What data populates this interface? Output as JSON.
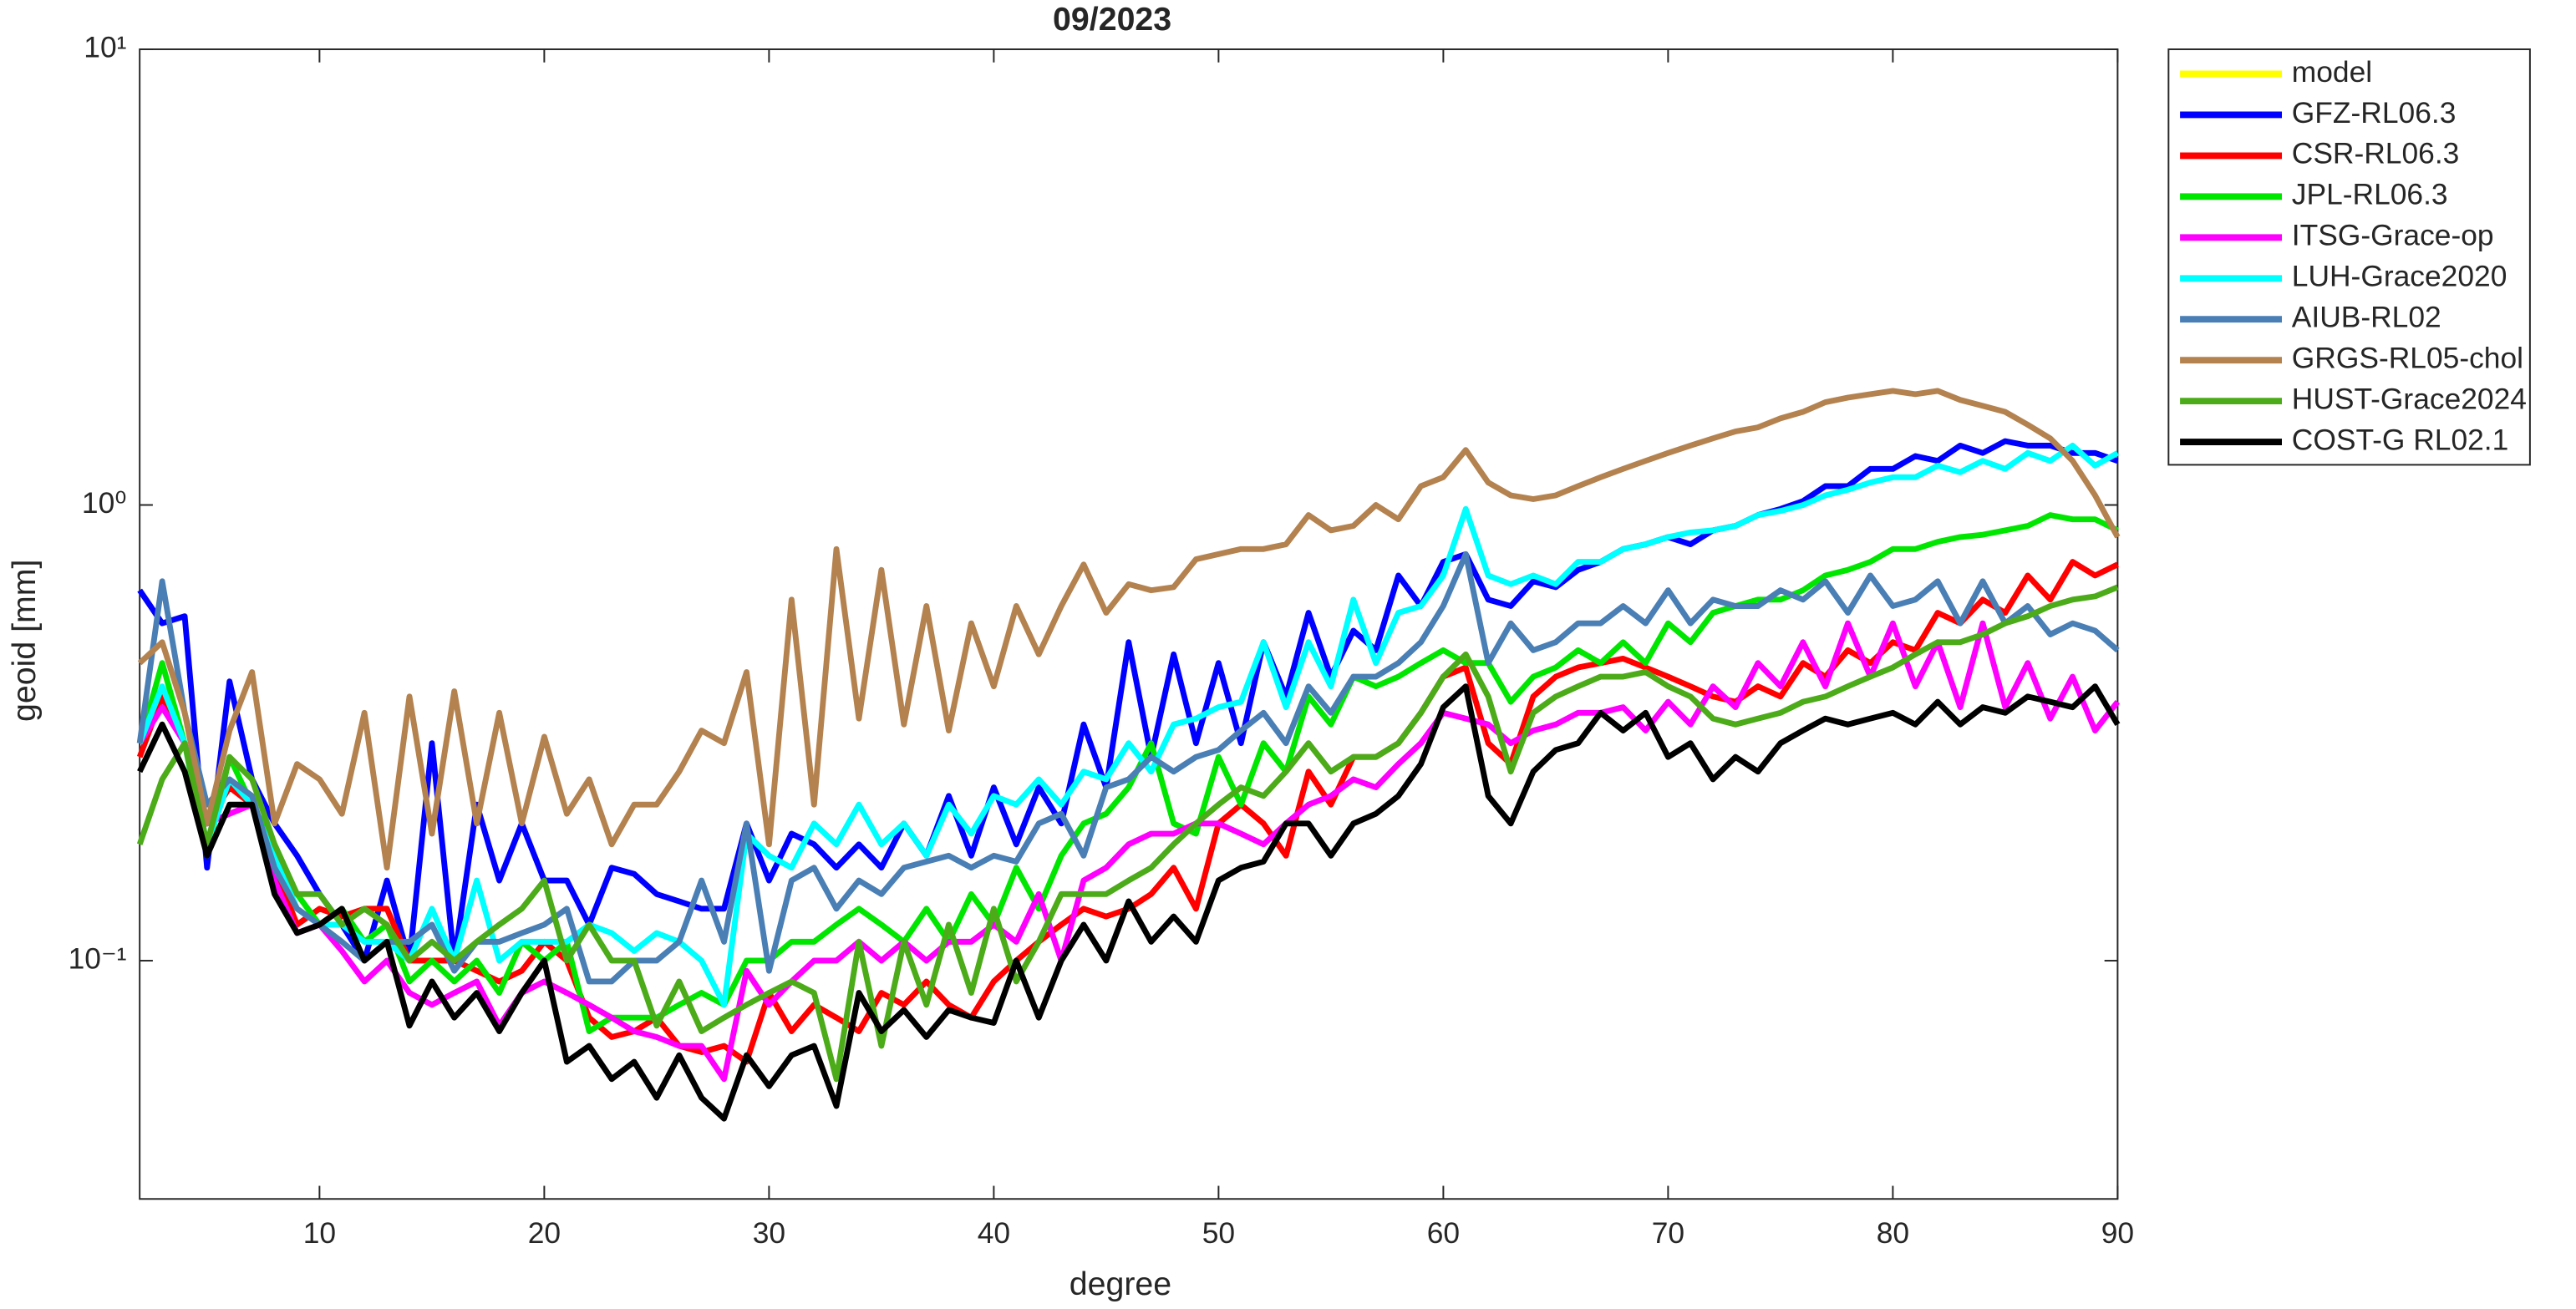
{
  "chart_data": {
    "type": "line",
    "title": "09/2023",
    "xlabel": "degree",
    "ylabel": "geoid [mm]",
    "log_y": true,
    "legend": "outside right",
    "xlim": [
      2,
      90
    ],
    "xticks": [
      10,
      20,
      30,
      40,
      50,
      60,
      70,
      80,
      90
    ],
    "ylim": [
      0.03,
      10
    ],
    "yticks": [
      {
        "value": 0.1,
        "label": "10⁻¹"
      },
      {
        "value": 1,
        "label": "10⁰"
      },
      {
        "value": 10,
        "label": "10¹"
      }
    ],
    "x": [
      2,
      3,
      4,
      5,
      6,
      7,
      8,
      9,
      10,
      11,
      12,
      13,
      14,
      15,
      16,
      17,
      18,
      19,
      20,
      21,
      22,
      23,
      24,
      25,
      26,
      27,
      28,
      29,
      30,
      31,
      32,
      33,
      34,
      35,
      36,
      37,
      38,
      39,
      40,
      41,
      42,
      43,
      44,
      45,
      46,
      47,
      48,
      49,
      50,
      51,
      52,
      53,
      54,
      55,
      56,
      57,
      58,
      59,
      60,
      61,
      62,
      63,
      64,
      65,
      66,
      67,
      68,
      69,
      70,
      71,
      72,
      73,
      74,
      75,
      76,
      77,
      78,
      79,
      80,
      81,
      82,
      83,
      84,
      85,
      86,
      87,
      88,
      89,
      90
    ],
    "series": [
      {
        "name": "model",
        "color": "#ffff00",
        "values": [
          null,
          null,
          null,
          null,
          null,
          null,
          null,
          null,
          null,
          null,
          null,
          null,
          null,
          null,
          null,
          null,
          null,
          null,
          null,
          null,
          null,
          null,
          null,
          null,
          null,
          null,
          null,
          null,
          null,
          null,
          null,
          null,
          null,
          null,
          null,
          null,
          null,
          null,
          null,
          null,
          null,
          null,
          null,
          null,
          null,
          null,
          null,
          null,
          null,
          null,
          null,
          null,
          null,
          null,
          null,
          null,
          null,
          null,
          null,
          null,
          null,
          null,
          null,
          null,
          null,
          null,
          null,
          null,
          null,
          null,
          null,
          null,
          null,
          null,
          null,
          null,
          null,
          null,
          null,
          null,
          null,
          null,
          null,
          null,
          null,
          null,
          null,
          null,
          null
        ]
      },
      {
        "name": "GFZ-RL06.3",
        "color": "#0000ff",
        "values": [
          0.65,
          0.55,
          0.57,
          0.16,
          0.41,
          0.25,
          0.2,
          0.17,
          0.14,
          0.12,
          0.1,
          0.15,
          0.1,
          0.3,
          0.1,
          0.22,
          0.15,
          0.2,
          0.15,
          0.15,
          0.12,
          0.16,
          0.155,
          0.14,
          0.135,
          0.13,
          0.13,
          0.2,
          0.15,
          0.19,
          0.18,
          0.16,
          0.18,
          0.16,
          0.2,
          0.17,
          0.23,
          0.17,
          0.24,
          0.18,
          0.24,
          0.2,
          0.33,
          0.24,
          0.5,
          0.28,
          0.47,
          0.3,
          0.45,
          0.3,
          0.5,
          0.38,
          0.58,
          0.42,
          0.53,
          0.48,
          0.7,
          0.6,
          0.75,
          0.78,
          0.62,
          0.6,
          0.68,
          0.66,
          0.72,
          0.75,
          0.8,
          0.82,
          0.85,
          0.82,
          0.88,
          0.9,
          0.95,
          0.98,
          1.02,
          1.1,
          1.1,
          1.2,
          1.2,
          1.28,
          1.25,
          1.35,
          1.3,
          1.38,
          1.35,
          1.35,
          1.3,
          1.3,
          1.25
        ]
      },
      {
        "name": "CSR-RL06.3",
        "color": "#ff0000",
        "values": [
          0.28,
          0.38,
          0.3,
          0.2,
          0.24,
          0.22,
          0.16,
          0.12,
          0.13,
          0.125,
          0.13,
          0.13,
          0.1,
          0.1,
          0.1,
          0.095,
          0.09,
          0.095,
          0.11,
          0.1,
          0.075,
          0.068,
          0.07,
          0.075,
          0.065,
          0.063,
          0.065,
          0.06,
          0.085,
          0.07,
          0.08,
          0.075,
          0.07,
          0.085,
          0.08,
          0.09,
          0.08,
          0.075,
          0.09,
          0.1,
          0.11,
          0.12,
          0.13,
          0.125,
          0.13,
          0.14,
          0.16,
          0.13,
          0.2,
          0.22,
          0.2,
          0.17,
          0.26,
          0.22,
          0.28,
          0.28,
          0.3,
          0.35,
          0.42,
          0.44,
          0.3,
          0.27,
          0.38,
          0.42,
          0.44,
          0.45,
          0.46,
          0.44,
          0.42,
          0.4,
          0.38,
          0.37,
          0.4,
          0.38,
          0.45,
          0.42,
          0.48,
          0.45,
          0.5,
          0.48,
          0.58,
          0.55,
          0.62,
          0.58,
          0.7,
          0.62,
          0.75,
          0.7,
          0.74
        ]
      },
      {
        "name": "JPL-RL06.3",
        "color": "#00e600",
        "values": [
          0.3,
          0.45,
          0.3,
          0.17,
          0.28,
          0.22,
          0.18,
          0.14,
          0.12,
          0.13,
          0.11,
          0.12,
          0.09,
          0.1,
          0.09,
          0.1,
          0.085,
          0.11,
          0.1,
          0.11,
          0.07,
          0.075,
          0.075,
          0.075,
          0.08,
          0.085,
          0.08,
          0.1,
          0.1,
          0.11,
          0.11,
          0.12,
          0.13,
          0.12,
          0.11,
          0.13,
          0.11,
          0.14,
          0.12,
          0.16,
          0.13,
          0.17,
          0.2,
          0.21,
          0.24,
          0.3,
          0.2,
          0.19,
          0.28,
          0.22,
          0.3,
          0.26,
          0.38,
          0.33,
          0.42,
          0.4,
          0.42,
          0.45,
          0.48,
          0.45,
          0.45,
          0.37,
          0.42,
          0.44,
          0.48,
          0.45,
          0.5,
          0.45,
          0.55,
          0.5,
          0.58,
          0.6,
          0.62,
          0.62,
          0.65,
          0.7,
          0.72,
          0.75,
          0.8,
          0.8,
          0.83,
          0.85,
          0.86,
          0.88,
          0.9,
          0.95,
          0.93,
          0.93,
          0.88
        ]
      },
      {
        "name": "ITSG-Grace-op",
        "color": "#ff00ff",
        "values": [
          0.3,
          0.36,
          0.3,
          0.2,
          0.21,
          0.22,
          0.15,
          0.115,
          0.12,
          0.105,
          0.09,
          0.1,
          0.085,
          0.08,
          0.085,
          0.09,
          0.072,
          0.085,
          0.09,
          0.085,
          0.08,
          0.075,
          0.07,
          0.068,
          0.065,
          0.065,
          0.055,
          0.095,
          0.08,
          0.09,
          0.1,
          0.1,
          0.11,
          0.1,
          0.11,
          0.1,
          0.11,
          0.11,
          0.12,
          0.11,
          0.14,
          0.1,
          0.15,
          0.16,
          0.18,
          0.19,
          0.19,
          0.2,
          0.2,
          0.19,
          0.18,
          0.2,
          0.22,
          0.23,
          0.25,
          0.24,
          0.27,
          0.3,
          0.35,
          0.34,
          0.33,
          0.3,
          0.32,
          0.33,
          0.35,
          0.35,
          0.36,
          0.32,
          0.37,
          0.33,
          0.4,
          0.36,
          0.45,
          0.4,
          0.5,
          0.4,
          0.55,
          0.42,
          0.55,
          0.4,
          0.5,
          0.36,
          0.55,
          0.36,
          0.45,
          0.34,
          0.42,
          0.32,
          0.37
        ]
      },
      {
        "name": "LUH-Grace2020",
        "color": "#00ffff",
        "values": [
          0.3,
          0.4,
          0.3,
          0.18,
          0.25,
          0.22,
          0.17,
          0.13,
          0.12,
          0.12,
          0.11,
          0.11,
          0.1,
          0.13,
          0.1,
          0.15,
          0.1,
          0.11,
          0.11,
          0.11,
          0.12,
          0.115,
          0.105,
          0.115,
          0.11,
          0.1,
          0.08,
          0.19,
          0.17,
          0.16,
          0.2,
          0.18,
          0.22,
          0.18,
          0.2,
          0.17,
          0.22,
          0.19,
          0.23,
          0.22,
          0.25,
          0.22,
          0.26,
          0.25,
          0.3,
          0.26,
          0.33,
          0.34,
          0.36,
          0.37,
          0.5,
          0.36,
          0.5,
          0.4,
          0.62,
          0.45,
          0.58,
          0.6,
          0.7,
          0.98,
          0.7,
          0.67,
          0.7,
          0.67,
          0.75,
          0.75,
          0.8,
          0.82,
          0.85,
          0.87,
          0.88,
          0.9,
          0.95,
          0.97,
          1.0,
          1.05,
          1.08,
          1.12,
          1.15,
          1.15,
          1.22,
          1.18,
          1.25,
          1.2,
          1.3,
          1.25,
          1.35,
          1.22,
          1.3
        ]
      },
      {
        "name": "AIUB-RL02",
        "color": "#4a7fb5",
        "values": [
          0.3,
          0.68,
          0.35,
          0.22,
          0.25,
          0.23,
          0.16,
          0.13,
          0.12,
          0.11,
          0.1,
          0.11,
          0.11,
          0.12,
          0.095,
          0.11,
          0.11,
          0.115,
          0.12,
          0.13,
          0.09,
          0.09,
          0.1,
          0.1,
          0.11,
          0.15,
          0.11,
          0.2,
          0.095,
          0.15,
          0.16,
          0.13,
          0.15,
          0.14,
          0.16,
          0.165,
          0.17,
          0.16,
          0.17,
          0.165,
          0.2,
          0.21,
          0.17,
          0.24,
          0.25,
          0.28,
          0.26,
          0.28,
          0.29,
          0.32,
          0.35,
          0.3,
          0.4,
          0.35,
          0.42,
          0.42,
          0.45,
          0.5,
          0.6,
          0.78,
          0.45,
          0.55,
          0.48,
          0.5,
          0.55,
          0.55,
          0.6,
          0.55,
          0.65,
          0.55,
          0.62,
          0.6,
          0.6,
          0.65,
          0.62,
          0.68,
          0.58,
          0.7,
          0.6,
          0.62,
          0.68,
          0.55,
          0.68,
          0.55,
          0.6,
          0.52,
          0.55,
          0.53,
          0.48
        ]
      },
      {
        "name": "GRGS-RL05-chol",
        "color": "#b4824f",
        "values": [
          0.45,
          0.5,
          0.35,
          0.2,
          0.32,
          0.43,
          0.2,
          0.27,
          0.25,
          0.21,
          0.35,
          0.16,
          0.38,
          0.19,
          0.39,
          0.2,
          0.35,
          0.2,
          0.31,
          0.21,
          0.25,
          0.18,
          0.22,
          0.22,
          0.26,
          0.32,
          0.3,
          0.43,
          0.18,
          0.62,
          0.22,
          0.8,
          0.34,
          0.72,
          0.33,
          0.6,
          0.32,
          0.55,
          0.4,
          0.6,
          0.47,
          0.6,
          0.74,
          0.58,
          0.67,
          0.65,
          0.66,
          0.76,
          0.78,
          0.8,
          0.8,
          0.82,
          0.95,
          0.88,
          0.9,
          1.0,
          0.93,
          1.1,
          1.15,
          1.32,
          1.12,
          1.05,
          1.03,
          1.05,
          1.1,
          1.15,
          1.2,
          1.25,
          1.3,
          1.35,
          1.4,
          1.45,
          1.48,
          1.55,
          1.6,
          1.68,
          1.72,
          1.75,
          1.78,
          1.75,
          1.78,
          1.7,
          1.65,
          1.6,
          1.5,
          1.4,
          1.25,
          1.05,
          0.85
        ]
      },
      {
        "name": "HUST-Grace2024",
        "color": "#4cab19",
        "values": [
          0.18,
          0.25,
          0.3,
          0.18,
          0.28,
          0.25,
          0.18,
          0.14,
          0.14,
          0.12,
          0.13,
          0.12,
          0.1,
          0.11,
          0.1,
          0.11,
          0.12,
          0.13,
          0.15,
          0.1,
          0.12,
          0.1,
          0.1,
          0.072,
          0.09,
          0.07,
          0.075,
          0.08,
          0.085,
          0.09,
          0.085,
          0.055,
          0.11,
          0.065,
          0.11,
          0.08,
          0.12,
          0.085,
          0.13,
          0.09,
          0.11,
          0.14,
          0.14,
          0.14,
          0.15,
          0.16,
          0.18,
          0.2,
          0.22,
          0.24,
          0.23,
          0.26,
          0.3,
          0.26,
          0.28,
          0.28,
          0.3,
          0.35,
          0.42,
          0.47,
          0.38,
          0.26,
          0.35,
          0.38,
          0.4,
          0.42,
          0.42,
          0.43,
          0.4,
          0.38,
          0.34,
          0.33,
          0.34,
          0.35,
          0.37,
          0.38,
          0.4,
          0.42,
          0.44,
          0.47,
          0.5,
          0.5,
          0.52,
          0.55,
          0.57,
          0.6,
          0.62,
          0.63,
          0.66
        ]
      },
      {
        "name": "COST-G RL02.1",
        "color": "#000000",
        "values": [
          0.26,
          0.33,
          0.26,
          0.17,
          0.22,
          0.22,
          0.14,
          0.115,
          0.12,
          0.13,
          0.1,
          0.11,
          0.072,
          0.09,
          0.075,
          0.085,
          0.07,
          0.085,
          0.1,
          0.06,
          0.065,
          0.055,
          0.06,
          0.05,
          0.062,
          0.05,
          0.045,
          0.062,
          0.053,
          0.062,
          0.065,
          0.048,
          0.085,
          0.07,
          0.078,
          0.068,
          0.078,
          0.075,
          0.073,
          0.1,
          0.075,
          0.1,
          0.12,
          0.1,
          0.135,
          0.11,
          0.125,
          0.11,
          0.15,
          0.16,
          0.165,
          0.2,
          0.2,
          0.17,
          0.2,
          0.21,
          0.23,
          0.27,
          0.36,
          0.4,
          0.23,
          0.2,
          0.26,
          0.29,
          0.3,
          0.35,
          0.32,
          0.35,
          0.28,
          0.3,
          0.25,
          0.28,
          0.26,
          0.3,
          0.32,
          0.34,
          0.33,
          0.34,
          0.35,
          0.33,
          0.37,
          0.33,
          0.36,
          0.35,
          0.38,
          0.37,
          0.36,
          0.4,
          0.33
        ]
      }
    ]
  }
}
